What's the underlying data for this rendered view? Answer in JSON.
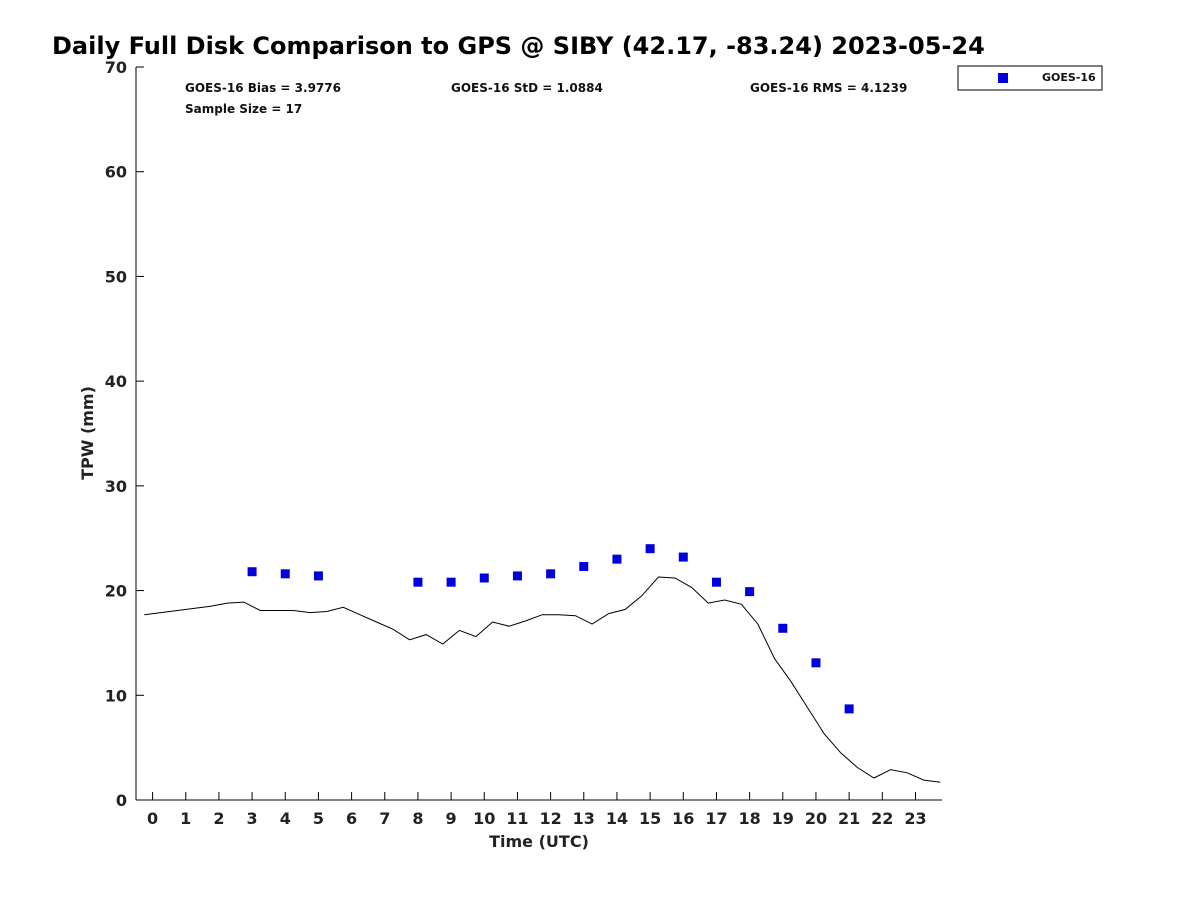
{
  "chart_data": {
    "type": "scatter",
    "title": "Daily Full Disk Comparison to GPS @ SIBY (42.17, -83.24) 2023-05-24",
    "xlabel": "Time (UTC)",
    "ylabel": "TPW (mm)",
    "xlim": [
      -0.5,
      23.8
    ],
    "ylim": [
      0,
      70
    ],
    "x_ticks": [
      0,
      1,
      2,
      3,
      4,
      5,
      6,
      7,
      8,
      9,
      10,
      11,
      12,
      13,
      14,
      15,
      16,
      17,
      18,
      19,
      20,
      21,
      22,
      23
    ],
    "x_tick_labels": [
      "0",
      "1",
      "2",
      "3",
      "4",
      "5",
      "6",
      "7",
      "8",
      "9",
      "10",
      "11",
      "12",
      "13",
      "14",
      "15",
      "16",
      "17",
      "18",
      "19",
      "20",
      "21",
      "22",
      "23"
    ],
    "y_ticks": [
      0,
      10,
      20,
      30,
      40,
      50,
      60,
      70
    ],
    "y_tick_labels": [
      "0",
      "10",
      "20",
      "30",
      "40",
      "50",
      "60",
      "70"
    ],
    "grid": false,
    "legend_position": "top-right",
    "stats": {
      "bias": "GOES-16 Bias = 3.9776",
      "std": "GOES-16 StD = 1.0884",
      "rms": "GOES-16 RMS = 4.1239",
      "sample_size": "Sample Size = 17"
    },
    "series": [
      {
        "name": "GOES-16",
        "kind": "scatter",
        "marker": "square",
        "color": "#0000dd",
        "x": [
          3,
          4,
          5,
          8,
          9,
          10,
          11,
          12,
          13,
          14,
          15,
          16,
          17,
          18,
          19,
          20,
          21
        ],
        "y": [
          21.8,
          21.6,
          21.4,
          20.8,
          20.8,
          21.2,
          21.4,
          21.6,
          22.3,
          23.0,
          24.0,
          23.2,
          20.8,
          19.9,
          16.4,
          13.1,
          8.7
        ]
      },
      {
        "kind": "line",
        "color": "#000000",
        "x": [
          -0.25,
          0.25,
          0.75,
          1.25,
          1.75,
          2.25,
          2.75,
          3.25,
          3.75,
          4.25,
          4.75,
          5.25,
          5.75,
          6.25,
          6.75,
          7.25,
          7.75,
          8.25,
          8.75,
          9.25,
          9.75,
          10.25,
          10.75,
          11.25,
          11.75,
          12.25,
          12.75,
          13.25,
          13.75,
          14.25,
          14.75,
          15.25,
          15.75,
          16.25,
          16.75,
          17.25,
          17.75,
          18.25,
          18.75,
          19.25,
          19.75,
          20.25,
          20.75,
          21.25,
          21.75,
          22.25,
          22.75,
          23.25,
          23.75
        ],
        "y": [
          17.7,
          17.9,
          18.1,
          18.3,
          18.5,
          18.8,
          18.9,
          18.1,
          18.1,
          18.1,
          17.9,
          18.0,
          18.4,
          17.7,
          17.0,
          16.3,
          15.3,
          15.8,
          14.9,
          16.2,
          15.6,
          17.0,
          16.6,
          17.1,
          17.7,
          17.7,
          17.6,
          16.8,
          17.8,
          18.2,
          19.5,
          21.3,
          21.2,
          20.3,
          18.8,
          19.1,
          18.7,
          16.8,
          13.5,
          11.3,
          8.8,
          6.3,
          4.5,
          3.1,
          2.1,
          2.9,
          2.6,
          1.9,
          1.7
        ]
      }
    ]
  }
}
